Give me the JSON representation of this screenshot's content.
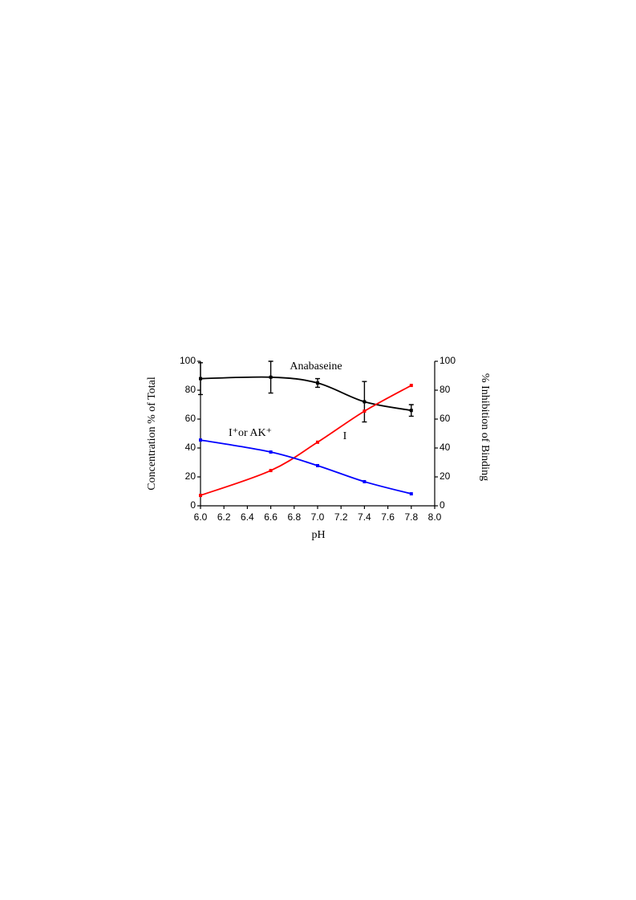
{
  "chart_data": {
    "type": "line",
    "x_label": "pH",
    "y_label": "Concentration % of Total",
    "y2_label": "% Inhibition of Binding",
    "xlim": [
      6.0,
      8.0
    ],
    "xticks": [
      {
        "value": 6.0,
        "label": "6.0"
      },
      {
        "value": 6.2,
        "label": "6.2"
      },
      {
        "value": 6.4,
        "label": "6.4"
      },
      {
        "value": 6.6,
        "label": "6.6"
      },
      {
        "value": 6.8,
        "label": "6.8"
      },
      {
        "value": 7.0,
        "label": "7.0"
      },
      {
        "value": 7.2,
        "label": "7.2"
      },
      {
        "value": 7.4,
        "label": "7.4"
      },
      {
        "value": 7.6,
        "label": "7.6"
      },
      {
        "value": 7.8,
        "label": "7.8"
      },
      {
        "value": 8.0,
        "label": "8.0"
      }
    ],
    "ylim": [
      0,
      100
    ],
    "yticks": [
      0,
      20,
      40,
      60,
      80,
      100
    ],
    "y2lim": [
      0,
      100
    ],
    "y2ticks": [
      0,
      20,
      40,
      60,
      80,
      100
    ],
    "x": [
      6.0,
      6.6,
      7.0,
      7.4,
      7.8
    ],
    "series": [
      {
        "name": "Anabaseine",
        "color": "#000000",
        "axis": "y2",
        "values": [
          88,
          89,
          85,
          72,
          66
        ],
        "errors": [
          11,
          11,
          3,
          14,
          4
        ]
      },
      {
        "name": "I",
        "color": "#ff0000",
        "values": [
          7.2,
          24.4,
          44,
          65.5,
          83.3
        ]
      },
      {
        "name": "I⁺or AK⁺",
        "color": "#0000ff",
        "values": [
          45.5,
          37.2,
          27.8,
          16.7,
          8.3
        ]
      }
    ]
  }
}
